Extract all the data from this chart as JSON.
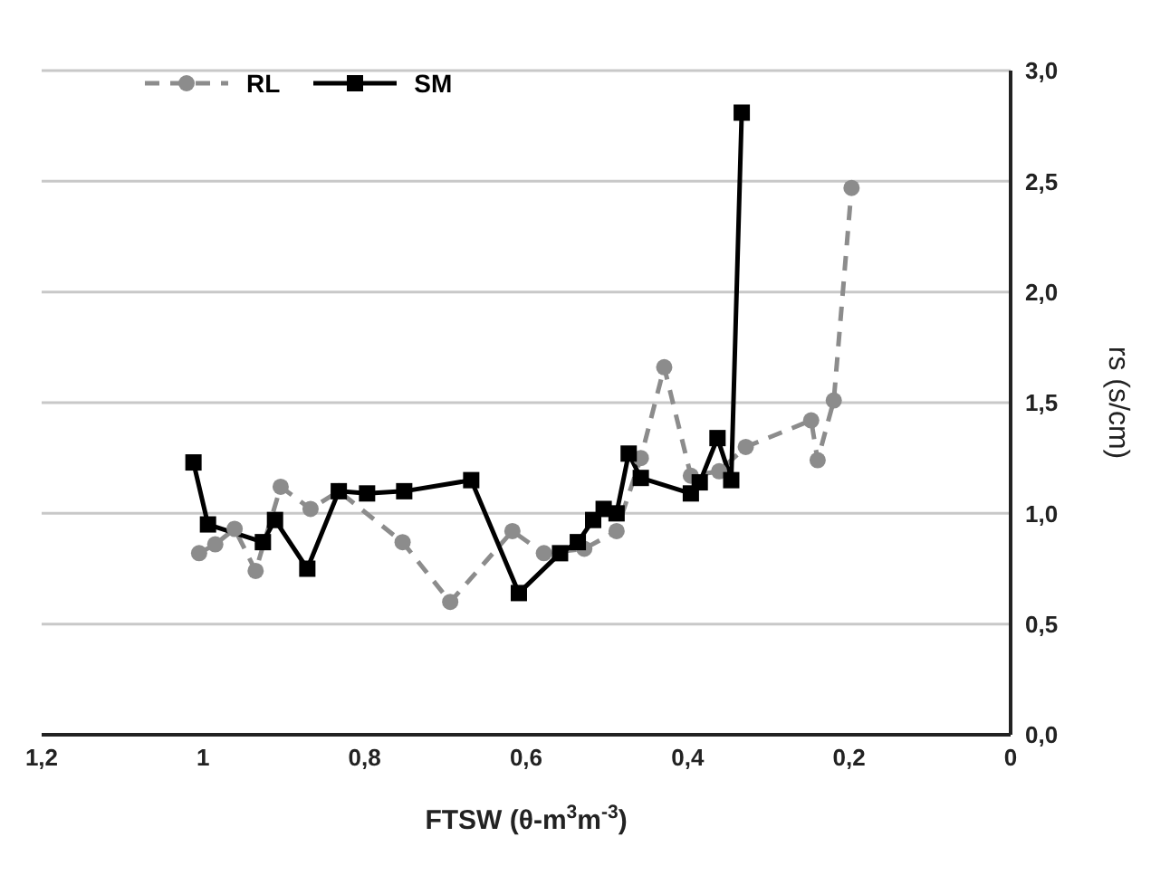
{
  "chart_data": {
    "type": "line",
    "xlabel": "FTSW (θ-m$^{3}$m$^{-3}$)",
    "ylabel": "rs (s/cm)",
    "xlim": [
      1.2,
      0
    ],
    "xticks": [
      {
        "value": 1.2,
        "label": "1,2"
      },
      1,
      {
        "value": 0.8,
        "label": "0,8"
      },
      {
        "value": 0.6,
        "label": "0,6"
      },
      {
        "value": 0.4,
        "label": "0,4"
      },
      {
        "value": 0.2,
        "label": "0,2"
      },
      0
    ],
    "ylim": [
      0,
      3
    ],
    "yticks": [
      {
        "value": 0,
        "label": "0,0"
      },
      {
        "value": 0.5,
        "label": "0,5"
      },
      {
        "value": 1,
        "label": "1,0"
      },
      {
        "value": 1.5,
        "label": "1,5"
      },
      {
        "value": 2,
        "label": "2,0"
      },
      {
        "value": 2.5,
        "label": "2,5"
      },
      {
        "value": 3,
        "label": "3,0"
      }
    ],
    "grid": "y",
    "legend": "top left",
    "series": [
      {
        "name": "RL",
        "color": "#8c8c8c",
        "marker": "circle",
        "line_style": "dashed",
        "x": [
          1.005,
          0.985,
          0.961,
          0.935,
          0.904,
          0.867,
          0.832,
          0.753,
          0.694,
          0.617,
          0.578,
          0.528,
          0.488,
          0.458,
          0.429,
          0.396,
          0.361,
          0.328,
          0.247,
          0.239,
          0.219,
          0.197
        ],
        "values": [
          0.82,
          0.86,
          0.93,
          0.74,
          1.12,
          1.02,
          1.1,
          0.87,
          0.6,
          0.92,
          0.82,
          0.84,
          0.92,
          1.25,
          1.66,
          1.17,
          1.19,
          1.3,
          1.42,
          1.24,
          1.51,
          2.47
        ]
      },
      {
        "name": "SM",
        "color": "#000000",
        "marker": "square",
        "line_style": "solid",
        "x": [
          1.012,
          0.994,
          0.926,
          0.911,
          0.871,
          0.832,
          0.797,
          0.751,
          0.668,
          0.609,
          0.558,
          0.536,
          0.517,
          0.504,
          0.488,
          0.473,
          0.458,
          0.396,
          0.385,
          0.363,
          0.346,
          0.333
        ],
        "values": [
          1.23,
          0.95,
          0.87,
          0.97,
          0.75,
          1.1,
          1.09,
          1.1,
          1.15,
          0.64,
          0.82,
          0.87,
          0.97,
          1.02,
          1.0,
          1.27,
          1.16,
          1.09,
          1.14,
          1.34,
          1.15,
          2.81
        ]
      }
    ]
  }
}
